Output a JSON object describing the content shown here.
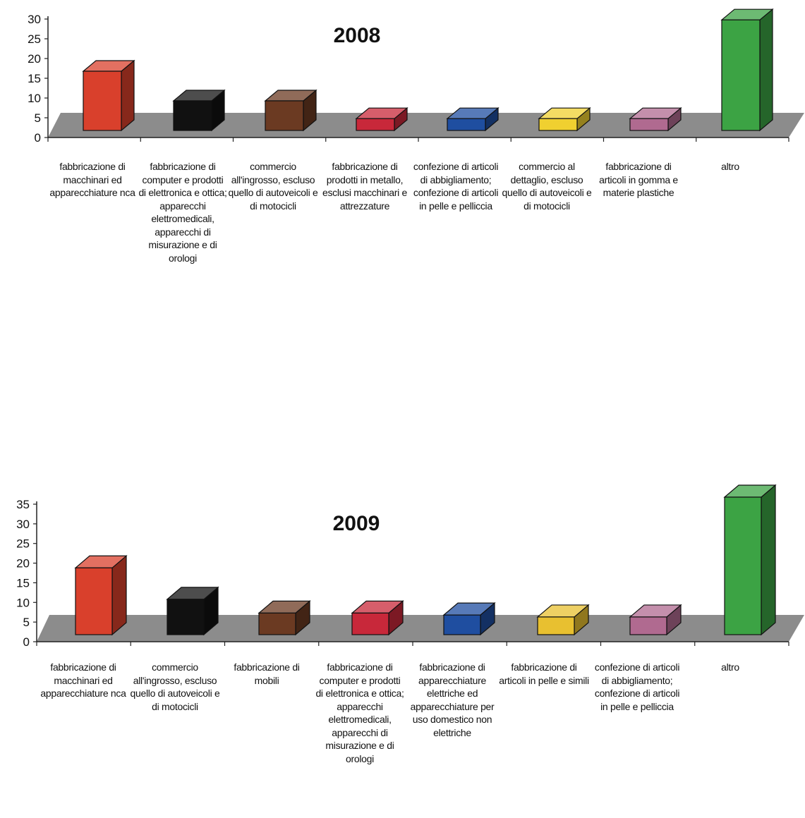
{
  "chart_data": [
    {
      "type": "bar",
      "title": "2008",
      "ylim": [
        0,
        30
      ],
      "yticks": [
        "0",
        "5",
        "10",
        "15",
        "20",
        "25",
        "30"
      ],
      "categories": [
        "fabbricazione di macchinari ed apparecchiature nca",
        "fabbricazione di computer e prodotti di elettronica e ottica; apparecchi elettromedicali, apparecchi di misurazione e di orologi",
        "commercio all'ingrosso, escluso quello di autoveicoli e di motocicli",
        "fabbricazione di prodotti in metallo, esclusi macchinari e attrezzature",
        "confezione di articoli di abbigliamento; confezione di articoli in pelle e pelliccia",
        "commercio al dettaglio, escluso quello di autoveicoli e di motocicli",
        "fabbricazione di articoli in gomma e materie plastiche",
        "altro"
      ],
      "values": [
        15,
        7.5,
        7.5,
        3,
        3,
        3,
        3,
        28
      ],
      "colors": [
        "#d9402c",
        "#111111",
        "#6b3a22",
        "#c8283a",
        "#1f4ea0",
        "#f0d030",
        "#b06a90",
        "#3ca344"
      ],
      "grid": false,
      "legend": "none"
    },
    {
      "type": "bar",
      "title": "2009",
      "ylim": [
        0,
        35
      ],
      "yticks": [
        "0",
        "5",
        "10",
        "15",
        "20",
        "25",
        "30",
        "35"
      ],
      "categories": [
        "fabbricazione di macchinari ed apparecchiature nca",
        "commercio all'ingrosso, escluso quello di autoveicoli e di motocicli",
        "fabbricazione di mobili",
        "fabbricazione di computer e prodotti di elettronica e ottica; apparecchi elettromedicali, apparecchi di misurazione e di orologi",
        "fabbricazione di apparecchiature elettriche ed apparecchiature per uso domestico non elettriche",
        "fabbricazione di articoli in pelle e simili",
        "confezione di articoli di abbigliamento; confezione di articoli in pelle e pelliccia",
        "altro"
      ],
      "values": [
        17,
        9,
        5.5,
        5.5,
        5,
        4.5,
        4.5,
        35
      ],
      "colors": [
        "#d9402c",
        "#111111",
        "#6b3a22",
        "#c8283a",
        "#1f4ea0",
        "#e8c030",
        "#b06a90",
        "#3ca344"
      ],
      "grid": false,
      "legend": "none"
    }
  ]
}
